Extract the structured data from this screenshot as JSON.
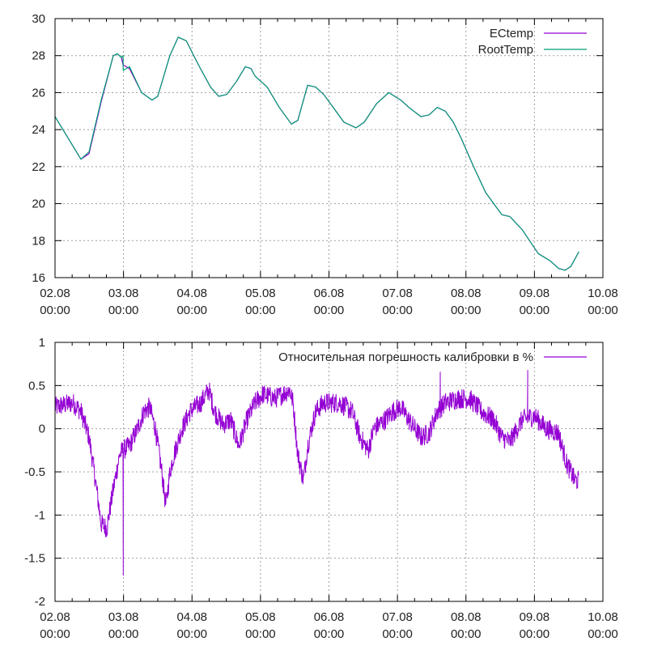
{
  "chart_data": [
    {
      "type": "line",
      "ylim": [
        16,
        30
      ],
      "yticks": [
        "16",
        "18",
        "20",
        "22",
        "24",
        "26",
        "28",
        "30"
      ],
      "xlim": [
        "02.08 00:00",
        "10.08 00:00"
      ],
      "xticks": [
        [
          "02.08",
          "00:00"
        ],
        [
          "03.08",
          "00:00"
        ],
        [
          "04.08",
          "00:00"
        ],
        [
          "05.08",
          "00:00"
        ],
        [
          "06.08",
          "00:00"
        ],
        [
          "07.08",
          "00:00"
        ],
        [
          "08.08",
          "00:00"
        ],
        [
          "09.08",
          "00:00"
        ],
        [
          "10.08",
          "00:00"
        ]
      ],
      "grid": true,
      "legend_position": "top-right",
      "series": [
        {
          "name": "ECtemp",
          "color": "#9400d3",
          "points": [
            [
              "02.08 00:00",
              24.7
            ],
            [
              "02.08 09:05",
              22.4
            ],
            [
              "02.08 11:55",
              22.7
            ],
            [
              "02.08 16:10",
              25.5
            ],
            [
              "02.08 20:25",
              28.0
            ],
            [
              "02.08 21:50",
              28.1
            ],
            [
              "02.08 23:15",
              27.9
            ],
            [
              "02.08 23:50",
              27.5
            ],
            [
              "03.08 02:05",
              27.3
            ],
            [
              "03.08 06:20",
              26.0
            ],
            [
              "03.08 10:00",
              25.6
            ],
            [
              "03.08 12:00",
              25.8
            ],
            [
              "03.08 16:15",
              28.0
            ],
            [
              "03.08 19:10",
              29.0
            ],
            [
              "03.08 22:00",
              28.8
            ],
            [
              "04.08 02:15",
              27.5
            ],
            [
              "04.08 06:30",
              26.3
            ],
            [
              "04.08 09:20",
              25.8
            ],
            [
              "04.08 12:10",
              25.9
            ],
            [
              "04.08 15:35",
              26.6
            ],
            [
              "04.08 18:40",
              27.4
            ],
            [
              "04.08 20:40",
              27.3
            ],
            [
              "04.08 22:05",
              26.9
            ],
            [
              "05.08 02:20",
              26.3
            ],
            [
              "05.08 06:35",
              25.2
            ],
            [
              "05.08 10:50",
              24.3
            ],
            [
              "05.08 13:05",
              24.5
            ],
            [
              "05.08 16:30",
              26.4
            ],
            [
              "05.08 19:20",
              26.3
            ],
            [
              "05.08 22:10",
              25.9
            ],
            [
              "06.08 01:00",
              25.3
            ],
            [
              "06.08 05:15",
              24.4
            ],
            [
              "06.08 09:30",
              24.1
            ],
            [
              "06.08 12:20",
              24.4
            ],
            [
              "06.08 16:40",
              25.4
            ],
            [
              "06.08 20:55",
              26.0
            ],
            [
              "07.08 01:10",
              25.6
            ],
            [
              "07.08 04:00",
              25.2
            ],
            [
              "07.08 08:15",
              24.7
            ],
            [
              "07.08 11:05",
              24.8
            ],
            [
              "07.08 13:55",
              25.2
            ],
            [
              "07.08 16:45",
              25.0
            ],
            [
              "07.08 19:35",
              24.4
            ],
            [
              "07.08 22:25",
              23.5
            ],
            [
              "08.08 02:40",
              22.0
            ],
            [
              "08.08 06:55",
              20.6
            ],
            [
              "08.08 12:35",
              19.4
            ],
            [
              "08.08 15:25",
              19.3
            ],
            [
              "08.08 19:40",
              18.6
            ],
            [
              "09.08 01:20",
              17.3
            ],
            [
              "09.08 05:35",
              16.9
            ],
            [
              "09.08 08:25",
              16.5
            ],
            [
              "09.08 10:45",
              16.4
            ],
            [
              "09.08 12:45",
              16.6
            ],
            [
              "09.08 15:35",
              17.4
            ]
          ]
        },
        {
          "name": "RootTemp",
          "color": "#009e73",
          "points": [
            [
              "02.08 00:00",
              24.7
            ],
            [
              "02.08 09:05",
              22.4
            ],
            [
              "02.08 11:55",
              22.8
            ],
            [
              "02.08 16:10",
              25.6
            ],
            [
              "02.08 20:25",
              28.0
            ],
            [
              "02.08 21:50",
              28.1
            ],
            [
              "02.08 23:15",
              27.9
            ],
            [
              "02.08 23:50",
              28.0
            ],
            [
              "02.08 23:55",
              27.2
            ],
            [
              "03.08 02:05",
              27.4
            ],
            [
              "03.08 06:20",
              26.0
            ],
            [
              "03.08 10:00",
              25.6
            ],
            [
              "03.08 12:00",
              25.8
            ],
            [
              "03.08 16:15",
              28.0
            ],
            [
              "03.08 19:10",
              29.0
            ],
            [
              "03.08 22:00",
              28.8
            ],
            [
              "04.08 02:15",
              27.5
            ],
            [
              "04.08 06:30",
              26.3
            ],
            [
              "04.08 09:20",
              25.8
            ],
            [
              "04.08 12:10",
              25.9
            ],
            [
              "04.08 15:35",
              26.6
            ],
            [
              "04.08 18:40",
              27.4
            ],
            [
              "04.08 20:40",
              27.3
            ],
            [
              "04.08 22:05",
              26.9
            ],
            [
              "05.08 02:20",
              26.3
            ],
            [
              "05.08 06:35",
              25.2
            ],
            [
              "05.08 10:50",
              24.3
            ],
            [
              "05.08 13:05",
              24.5
            ],
            [
              "05.08 16:30",
              26.4
            ],
            [
              "05.08 19:20",
              26.3
            ],
            [
              "05.08 22:10",
              25.9
            ],
            [
              "06.08 01:00",
              25.3
            ],
            [
              "06.08 05:15",
              24.4
            ],
            [
              "06.08 09:30",
              24.1
            ],
            [
              "06.08 12:20",
              24.4
            ],
            [
              "06.08 16:40",
              25.4
            ],
            [
              "06.08 20:55",
              26.0
            ],
            [
              "07.08 01:10",
              25.6
            ],
            [
              "07.08 04:00",
              25.2
            ],
            [
              "07.08 08:15",
              24.7
            ],
            [
              "07.08 11:05",
              24.8
            ],
            [
              "07.08 13:55",
              25.2
            ],
            [
              "07.08 16:45",
              25.0
            ],
            [
              "07.08 19:35",
              24.4
            ],
            [
              "07.08 22:25",
              23.5
            ],
            [
              "08.08 02:40",
              22.0
            ],
            [
              "08.08 06:55",
              20.6
            ],
            [
              "08.08 12:35",
              19.4
            ],
            [
              "08.08 15:25",
              19.3
            ],
            [
              "08.08 19:40",
              18.6
            ],
            [
              "09.08 01:20",
              17.3
            ],
            [
              "09.08 05:35",
              16.9
            ],
            [
              "09.08 08:25",
              16.5
            ],
            [
              "09.08 10:45",
              16.4
            ],
            [
              "09.08 12:45",
              16.6
            ],
            [
              "09.08 15:35",
              17.4
            ]
          ]
        }
      ]
    },
    {
      "type": "line",
      "ylim": [
        -2,
        1
      ],
      "yticks": [
        "-2",
        "-1.5",
        "-1",
        "-0.5",
        "0",
        "0.5",
        "1"
      ],
      "xlim": [
        "02.08 00:00",
        "10.08 00:00"
      ],
      "xticks": [
        [
          "02.08",
          "00:00"
        ],
        [
          "03.08",
          "00:00"
        ],
        [
          "04.08",
          "00:00"
        ],
        [
          "05.08",
          "00:00"
        ],
        [
          "06.08",
          "00:00"
        ],
        [
          "07.08",
          "00:00"
        ],
        [
          "08.08",
          "00:00"
        ],
        [
          "09.08",
          "00:00"
        ],
        [
          "10.08",
          "00:00"
        ]
      ],
      "grid": true,
      "legend_position": "top-right",
      "series": [
        {
          "name": "Относительная погрешность калибровки в %",
          "color": "#9400d3",
          "points": [
            [
              "02.08 00:00",
              0.25
            ],
            [
              "02.08 06:15",
              0.3
            ],
            [
              "02.08 09:05",
              0.2
            ],
            [
              "02.08 11:55",
              -0.1
            ],
            [
              "02.08 14:10",
              -0.6
            ],
            [
              "02.08 16:10",
              -1.1
            ],
            [
              "02.08 18:10",
              -1.15
            ],
            [
              "02.08 20:25",
              -0.7
            ],
            [
              "02.08 22:40",
              -0.3
            ],
            [
              "02.08 23:50",
              -0.25
            ],
            [
              "03.08 02:05",
              -0.2
            ],
            [
              "03.08 04:55",
              0.0
            ],
            [
              "03.08 07:10",
              0.2
            ],
            [
              "03.08 09:10",
              0.25
            ],
            [
              "03.08 11:10",
              0.0
            ],
            [
              "03.08 13:25",
              -0.5
            ],
            [
              "03.08 14:50",
              -0.9
            ],
            [
              "03.08 16:15",
              -0.5
            ],
            [
              "03.08 17:40",
              -0.3
            ],
            [
              "03.08 20:30",
              0.0
            ],
            [
              "03.08 23:20",
              0.2
            ],
            [
              "04.08 03:05",
              0.3
            ],
            [
              "04.08 05:55",
              0.45
            ],
            [
              "04.08 07:55",
              0.2
            ],
            [
              "04.08 10:45",
              0.05
            ],
            [
              "04.08 13:35",
              0.1
            ],
            [
              "04.08 16:25",
              -0.2
            ],
            [
              "04.08 19:15",
              0.1
            ],
            [
              "04.08 22:05",
              0.3
            ],
            [
              "05.08 00:55",
              0.4
            ],
            [
              "05.08 05:10",
              0.35
            ],
            [
              "05.08 10:15",
              0.45
            ],
            [
              "05.08 11:25",
              0.3
            ],
            [
              "05.08 13:05",
              -0.3
            ],
            [
              "05.08 15:05",
              -0.6
            ],
            [
              "05.08 16:30",
              -0.2
            ],
            [
              "05.08 19:20",
              0.2
            ],
            [
              "05.08 22:10",
              0.3
            ],
            [
              "06.08 03:50",
              0.3
            ],
            [
              "06.08 08:05",
              0.2
            ],
            [
              "06.08 10:55",
              -0.1
            ],
            [
              "06.08 13:45",
              -0.25
            ],
            [
              "06.08 15:45",
              0.0
            ],
            [
              "06.08 19:30",
              0.1
            ],
            [
              "06.08 22:20",
              0.2
            ],
            [
              "07.08 01:10",
              0.25
            ],
            [
              "07.08 04:00",
              0.1
            ],
            [
              "07.08 08:15",
              -0.1
            ],
            [
              "07.08 11:05",
              -0.05
            ],
            [
              "07.08 13:55",
              0.2
            ],
            [
              "07.08 16:45",
              0.3
            ],
            [
              "07.08 21:00",
              0.35
            ],
            [
              "08.08 01:15",
              0.35
            ],
            [
              "08.08 05:30",
              0.2
            ],
            [
              "08.08 09:45",
              0.1
            ],
            [
              "08.08 12:35",
              -0.1
            ],
            [
              "08.08 15:25",
              -0.15
            ],
            [
              "08.08 19:40",
              0.1
            ],
            [
              "08.08 23:55",
              0.15
            ],
            [
              "09.08 04:10",
              0.0
            ],
            [
              "09.08 08:25",
              -0.05
            ],
            [
              "09.08 11:15",
              -0.4
            ],
            [
              "09.08 14:10",
              -0.6
            ],
            [
              "09.08 15:35",
              -0.6
            ]
          ]
        }
      ],
      "spikes": [
        [
          "02.08 23:55",
          -1.7
        ],
        [
          "08.08 21:40",
          0.68
        ],
        [
          "07.08 15:00",
          0.66
        ]
      ]
    }
  ]
}
